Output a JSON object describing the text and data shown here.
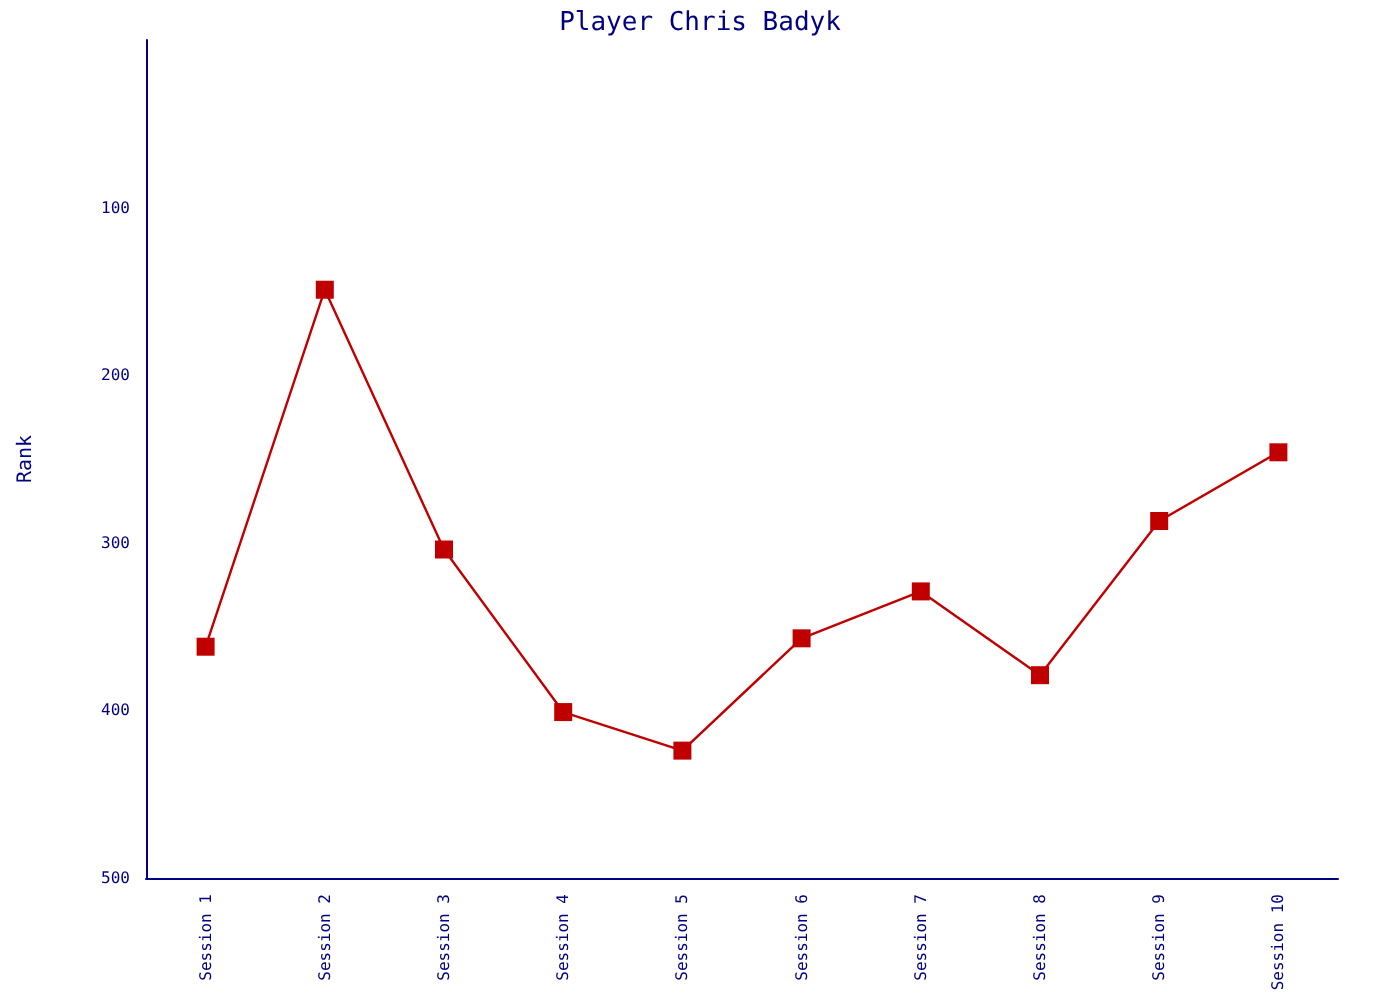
{
  "chart_data": {
    "type": "line",
    "title": "Player Chris Badyk",
    "ylabel": "Rank",
    "categories": [
      "Session 1",
      "Session 2",
      "Session 3",
      "Session 4",
      "Session 5",
      "Session 6",
      "Session 7",
      "Session 8",
      "Session 9",
      "Session 10"
    ],
    "series": [
      {
        "color": "#c00000",
        "values": [
          362,
          149,
          304,
          401,
          424,
          357,
          329,
          379,
          287,
          246
        ]
      }
    ],
    "ylim": [
      500,
      0
    ],
    "yticks": [
      100,
      200,
      300,
      400,
      500
    ],
    "grid": false,
    "marker": "square",
    "line_style": "solid"
  }
}
